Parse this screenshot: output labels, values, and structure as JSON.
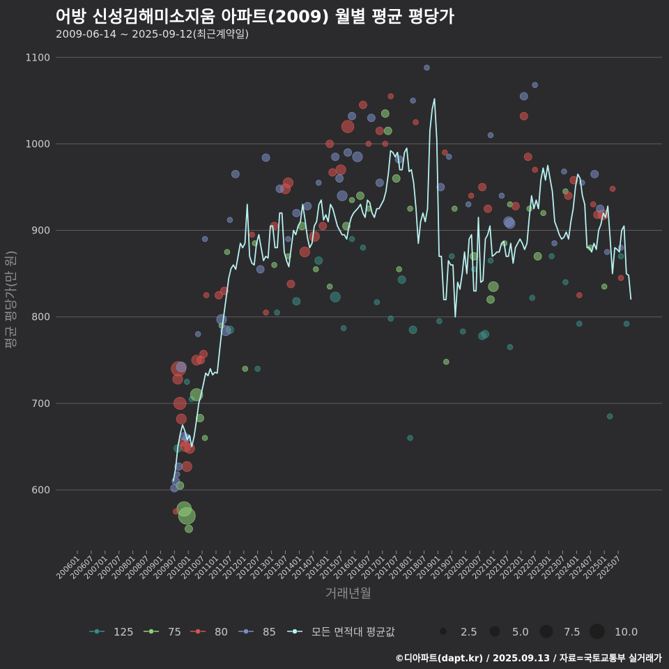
{
  "title": "어방 신성김해미소지움 아파트(2009) 월별 평균 평당가",
  "subtitle": "2009-06-14 ~ 2025-09-12(최근계약일)",
  "footer": "©디아파트(dapt.kr) / 2025.09.13 / 자료=국토교통부 실거래가",
  "chart_data": {
    "type": "scatter",
    "xlabel": "거래년월",
    "ylabel": "평균 평당가(만 원)",
    "ylim": [
      530,
      1100
    ],
    "yticks": [
      600,
      700,
      800,
      900,
      1000,
      1100
    ],
    "x_range": [
      2006.0,
      2025.92
    ],
    "xtick_labels": [
      "200601",
      "200607",
      "200701",
      "200707",
      "200801",
      "200807",
      "200901",
      "200907",
      "201001",
      "201007",
      "201101",
      "201107",
      "201201",
      "201207",
      "201301",
      "201307",
      "201401",
      "201407",
      "201501",
      "201507",
      "201601",
      "201607",
      "201701",
      "201707",
      "201801",
      "201807",
      "201901",
      "201907",
      "202001",
      "202007",
      "202101",
      "202107",
      "202201",
      "202207",
      "202301",
      "202307",
      "202401",
      "202407",
      "202501",
      "202507"
    ],
    "colors": {
      "125": "#3a8f86",
      "75": "#8fd17a",
      "80": "#d9534f",
      "85": "#7b8fc4",
      "avg": "#b8f2f0"
    },
    "series": [
      {
        "name": "125",
        "points": [
          [
            2009.62,
            648,
            2
          ],
          [
            2009.95,
            725,
            1
          ],
          [
            2010.12,
            705,
            1
          ],
          [
            2011.5,
            785,
            2
          ],
          [
            2012.5,
            740,
            1
          ],
          [
            2013.2,
            805,
            1
          ],
          [
            2013.9,
            818,
            2
          ],
          [
            2014.7,
            865,
            2
          ],
          [
            2015.3,
            823,
            3
          ],
          [
            2015.6,
            787,
            1
          ],
          [
            2015.9,
            890,
            1
          ],
          [
            2016.3,
            880,
            1
          ],
          [
            2016.8,
            817,
            1
          ],
          [
            2017.3,
            798,
            1
          ],
          [
            2017.7,
            843,
            2
          ],
          [
            2018.0,
            660,
            1
          ],
          [
            2018.1,
            785,
            2
          ],
          [
            2019.05,
            795,
            1
          ],
          [
            2019.5,
            870,
            1
          ],
          [
            2019.9,
            783,
            1
          ],
          [
            2020.3,
            855,
            1
          ],
          [
            2020.6,
            778,
            2
          ],
          [
            2020.7,
            780,
            2
          ],
          [
            2020.9,
            865,
            1
          ],
          [
            2021.6,
            765,
            1
          ],
          [
            2022.4,
            822,
            1
          ],
          [
            2023.1,
            870,
            1
          ],
          [
            2023.6,
            840,
            1
          ],
          [
            2024.1,
            792,
            1
          ],
          [
            2025.2,
            685,
            1
          ],
          [
            2025.6,
            870,
            1
          ],
          [
            2025.8,
            792,
            1
          ]
        ]
      },
      {
        "name": "75",
        "points": [
          [
            2009.7,
            605,
            2
          ],
          [
            2009.85,
            578,
            5
          ],
          [
            2009.95,
            570,
            6
          ],
          [
            2010.02,
            555,
            2
          ],
          [
            2010.3,
            710,
            4
          ],
          [
            2010.42,
            683,
            2
          ],
          [
            2010.6,
            660,
            1
          ],
          [
            2011.2,
            790,
            1
          ],
          [
            2011.4,
            875,
            1
          ],
          [
            2012.05,
            740,
            1
          ],
          [
            2012.4,
            885,
            1
          ],
          [
            2013.1,
            860,
            1
          ],
          [
            2013.6,
            870,
            1
          ],
          [
            2014.1,
            905,
            2
          ],
          [
            2014.6,
            855,
            1
          ],
          [
            2015.1,
            835,
            1
          ],
          [
            2015.7,
            905,
            2
          ],
          [
            2015.9,
            935,
            1
          ],
          [
            2016.2,
            940,
            2
          ],
          [
            2016.5,
            925,
            1
          ],
          [
            2017.1,
            1035,
            2
          ],
          [
            2017.2,
            1015,
            2
          ],
          [
            2017.5,
            960,
            2
          ],
          [
            2017.6,
            855,
            1
          ],
          [
            2018.0,
            925,
            1
          ],
          [
            2019.3,
            748,
            1
          ],
          [
            2019.6,
            925,
            1
          ],
          [
            2020.3,
            870,
            2
          ],
          [
            2020.9,
            820,
            2
          ],
          [
            2021.0,
            835,
            3
          ],
          [
            2021.4,
            885,
            1
          ],
          [
            2021.6,
            930,
            1
          ],
          [
            2022.3,
            925,
            1
          ],
          [
            2022.6,
            870,
            2
          ],
          [
            2022.8,
            920,
            1
          ],
          [
            2023.6,
            945,
            1
          ],
          [
            2024.5,
            880,
            1
          ],
          [
            2025.0,
            835,
            1
          ]
        ]
      },
      {
        "name": "80",
        "points": [
          [
            2009.55,
            575,
            1
          ],
          [
            2009.62,
            728,
            3
          ],
          [
            2009.65,
            740,
            5
          ],
          [
            2009.7,
            700,
            4
          ],
          [
            2009.75,
            682,
            3
          ],
          [
            2009.82,
            655,
            2
          ],
          [
            2009.9,
            650,
            3
          ],
          [
            2009.95,
            627,
            3
          ],
          [
            2010.05,
            648,
            3
          ],
          [
            2010.3,
            750,
            3
          ],
          [
            2010.45,
            750,
            2
          ],
          [
            2010.55,
            757,
            2
          ],
          [
            2010.65,
            825,
            1
          ],
          [
            2011.1,
            825,
            2
          ],
          [
            2011.3,
            830,
            2
          ],
          [
            2012.3,
            895,
            1
          ],
          [
            2012.8,
            805,
            1
          ],
          [
            2013.1,
            905,
            2
          ],
          [
            2013.5,
            948,
            3
          ],
          [
            2013.6,
            955,
            3
          ],
          [
            2013.7,
            838,
            2
          ],
          [
            2014.2,
            875,
            3
          ],
          [
            2014.55,
            893,
            3
          ],
          [
            2014.85,
            905,
            2
          ],
          [
            2015.1,
            1000,
            2
          ],
          [
            2015.2,
            967,
            2
          ],
          [
            2015.5,
            970,
            3
          ],
          [
            2015.75,
            1020,
            4
          ],
          [
            2016.3,
            1045,
            2
          ],
          [
            2016.5,
            1000,
            1
          ],
          [
            2016.9,
            1015,
            2
          ],
          [
            2017.1,
            1000,
            1
          ],
          [
            2017.3,
            1055,
            1
          ],
          [
            2018.2,
            1025,
            1
          ],
          [
            2019.25,
            990,
            1
          ],
          [
            2020.2,
            940,
            1
          ],
          [
            2020.6,
            950,
            2
          ],
          [
            2020.8,
            925,
            2
          ],
          [
            2021.8,
            928,
            2
          ],
          [
            2022.1,
            1032,
            2
          ],
          [
            2022.25,
            985,
            2
          ],
          [
            2022.5,
            970,
            1
          ],
          [
            2023.7,
            940,
            2
          ],
          [
            2023.9,
            958,
            2
          ],
          [
            2024.1,
            825,
            1
          ],
          [
            2024.6,
            930,
            1
          ],
          [
            2024.75,
            918,
            2
          ],
          [
            2024.95,
            918,
            3
          ],
          [
            2025.3,
            948,
            1
          ],
          [
            2025.6,
            845,
            1
          ]
        ]
      },
      {
        "name": "85",
        "points": [
          [
            2009.5,
            602,
            2
          ],
          [
            2009.55,
            610,
            2
          ],
          [
            2009.6,
            618,
            1
          ],
          [
            2009.65,
            627,
            2
          ],
          [
            2009.75,
            742,
            3
          ],
          [
            2009.85,
            662,
            2
          ],
          [
            2009.95,
            660,
            2
          ],
          [
            2010.35,
            780,
            1
          ],
          [
            2010.6,
            890,
            1
          ],
          [
            2011.2,
            797,
            3
          ],
          [
            2011.35,
            784,
            3
          ],
          [
            2011.5,
            912,
            1
          ],
          [
            2011.7,
            965,
            2
          ],
          [
            2012.6,
            855,
            2
          ],
          [
            2012.8,
            984,
            2
          ],
          [
            2013.3,
            948,
            2
          ],
          [
            2013.6,
            890,
            1
          ],
          [
            2013.9,
            920,
            2
          ],
          [
            2014.3,
            928,
            2
          ],
          [
            2014.7,
            955,
            1
          ],
          [
            2015.3,
            985,
            2
          ],
          [
            2015.45,
            960,
            2
          ],
          [
            2015.55,
            940,
            3
          ],
          [
            2015.75,
            990,
            2
          ],
          [
            2015.9,
            1032,
            2
          ],
          [
            2016.1,
            985,
            3
          ],
          [
            2016.6,
            1030,
            2
          ],
          [
            2016.9,
            955,
            2
          ],
          [
            2017.6,
            982,
            2
          ],
          [
            2018.1,
            1050,
            1
          ],
          [
            2018.6,
            1088,
            1
          ],
          [
            2019.1,
            950,
            2
          ],
          [
            2019.4,
            985,
            1
          ],
          [
            2020.1,
            930,
            1
          ],
          [
            2020.9,
            1010,
            1
          ],
          [
            2021.3,
            940,
            1
          ],
          [
            2021.55,
            910,
            3
          ],
          [
            2021.6,
            908,
            3
          ],
          [
            2022.1,
            1055,
            2
          ],
          [
            2022.5,
            1068,
            1
          ],
          [
            2023.2,
            885,
            1
          ],
          [
            2023.55,
            968,
            1
          ],
          [
            2024.2,
            955,
            1
          ],
          [
            2024.65,
            965,
            2
          ],
          [
            2024.85,
            925,
            2
          ],
          [
            2025.1,
            875,
            1
          ],
          [
            2025.6,
            880,
            1
          ]
        ]
      }
    ],
    "average_line": {
      "name": "모든 면적대 평균값",
      "x_start": 2009.46,
      "x_step": 0.0833333,
      "values": [
        610,
        625,
        650,
        665,
        675,
        668,
        658,
        663,
        650,
        662,
        680,
        700,
        710,
        722,
        735,
        732,
        740,
        733,
        736,
        735,
        760,
        785,
        805,
        825,
        845,
        856,
        860,
        855,
        870,
        885,
        880,
        885,
        930,
        870,
        862,
        860,
        885,
        895,
        880,
        865,
        870,
        868,
        905,
        905,
        880,
        880,
        920,
        920,
        875,
        865,
        858,
        880,
        900,
        895,
        905,
        910,
        930,
        912,
        892,
        880,
        885,
        905,
        910,
        930,
        935,
        912,
        918,
        910,
        930,
        925,
        915,
        905,
        900,
        895,
        895,
        890,
        905,
        915,
        920,
        923,
        926,
        930,
        920,
        915,
        935,
        932,
        920,
        915,
        925,
        925,
        930,
        935,
        945,
        965,
        992,
        990,
        985,
        990,
        970,
        970,
        990,
        995,
        968,
        970,
        955,
        925,
        885,
        910,
        920,
        910,
        925,
        1015,
        1040,
        1052,
        1005,
        870,
        870,
        820,
        820,
        865,
        860,
        860,
        800,
        840,
        832,
        850,
        875,
        850,
        890,
        895,
        830,
        830,
        915,
        840,
        842,
        890,
        895,
        905,
        870,
        872,
        875,
        875,
        885,
        887,
        870,
        870,
        885,
        862,
        880,
        885,
        890,
        885,
        878,
        885,
        915,
        940,
        925,
        935,
        925,
        958,
        972,
        958,
        975,
        960,
        945,
        910,
        903,
        895,
        890,
        892,
        898,
        890,
        910,
        925,
        950,
        965,
        960,
        940,
        930,
        880,
        880,
        875,
        885,
        878,
        900,
        907,
        920,
        915,
        928,
        890,
        850,
        880,
        878,
        875,
        900,
        905,
        850,
        848,
        820
      ]
    },
    "legend": {
      "series_labels": [
        "125",
        "75",
        "80",
        "85",
        "모든 면적대 평균값"
      ],
      "size_labels": [
        "2.5",
        "5.0",
        "7.5",
        "10.0"
      ],
      "size_values": [
        2.5,
        5.0,
        7.5,
        10.0
      ]
    }
  }
}
